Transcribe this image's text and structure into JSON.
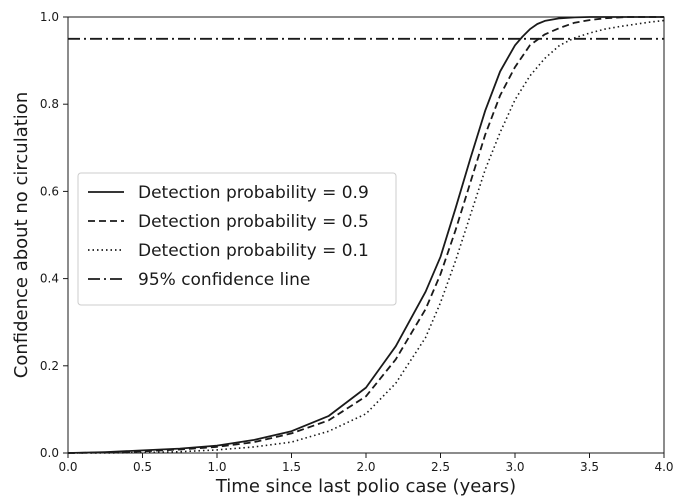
{
  "chart_data": {
    "type": "line",
    "title": "",
    "xlabel": "Time since last polio case (years)",
    "ylabel": "Confidence about no circulation",
    "xlim": [
      0.0,
      4.0
    ],
    "ylim": [
      0.0,
      1.0
    ],
    "xticks": [
      "0.0",
      "0.5",
      "1.0",
      "1.5",
      "2.0",
      "2.5",
      "3.0",
      "3.5",
      "4.0"
    ],
    "yticks": [
      "0.0",
      "0.2",
      "0.4",
      "0.6",
      "0.8",
      "1.0"
    ],
    "grid": false,
    "legend_position": "center-left",
    "series": [
      {
        "name": "Detection probability = 0.9",
        "style": "solid",
        "color": "#1a1a1a",
        "x": [
          0.0,
          0.25,
          0.5,
          0.75,
          1.0,
          1.25,
          1.5,
          1.75,
          2.0,
          2.2,
          2.4,
          2.5,
          2.6,
          2.7,
          2.8,
          2.9,
          3.0,
          3.05,
          3.1,
          3.15,
          3.2,
          3.3,
          3.4,
          3.5,
          3.75,
          4.0
        ],
        "y": [
          0.0,
          0.002,
          0.006,
          0.01,
          0.017,
          0.03,
          0.05,
          0.085,
          0.15,
          0.245,
          0.37,
          0.45,
          0.56,
          0.675,
          0.785,
          0.875,
          0.935,
          0.955,
          0.972,
          0.984,
          0.991,
          0.997,
          0.999,
          1.0,
          1.0,
          1.0
        ]
      },
      {
        "name": "Detection probability = 0.5",
        "style": "dashed",
        "color": "#1a1a1a",
        "x": [
          0.0,
          0.25,
          0.5,
          0.75,
          1.0,
          1.25,
          1.5,
          1.75,
          2.0,
          2.2,
          2.4,
          2.5,
          2.6,
          2.7,
          2.8,
          2.9,
          3.0,
          3.1,
          3.2,
          3.3,
          3.4,
          3.5,
          3.6,
          3.75,
          4.0
        ],
        "y": [
          0.0,
          0.001,
          0.004,
          0.008,
          0.014,
          0.025,
          0.045,
          0.075,
          0.13,
          0.215,
          0.33,
          0.41,
          0.51,
          0.62,
          0.73,
          0.82,
          0.885,
          0.935,
          0.96,
          0.975,
          0.987,
          0.993,
          0.997,
          1.0,
          1.0
        ]
      },
      {
        "name": "Detection probability = 0.1",
        "style": "dotted",
        "color": "#1a1a1a",
        "x": [
          0.0,
          0.25,
          0.5,
          0.75,
          1.0,
          1.25,
          1.5,
          1.75,
          2.0,
          2.2,
          2.4,
          2.5,
          2.6,
          2.7,
          2.8,
          2.9,
          3.0,
          3.1,
          3.2,
          3.3,
          3.4,
          3.5,
          3.6,
          3.7,
          3.8,
          3.9,
          4.0
        ],
        "y": [
          0.0,
          0.0,
          0.001,
          0.003,
          0.007,
          0.014,
          0.025,
          0.05,
          0.09,
          0.16,
          0.265,
          0.345,
          0.44,
          0.545,
          0.65,
          0.735,
          0.81,
          0.865,
          0.905,
          0.935,
          0.952,
          0.963,
          0.972,
          0.978,
          0.983,
          0.988,
          0.992
        ]
      },
      {
        "name": "95% confidence line",
        "style": "dashdot",
        "color": "#1a1a1a",
        "x": [
          0.0,
          4.0
        ],
        "y": [
          0.95,
          0.95
        ]
      }
    ]
  }
}
